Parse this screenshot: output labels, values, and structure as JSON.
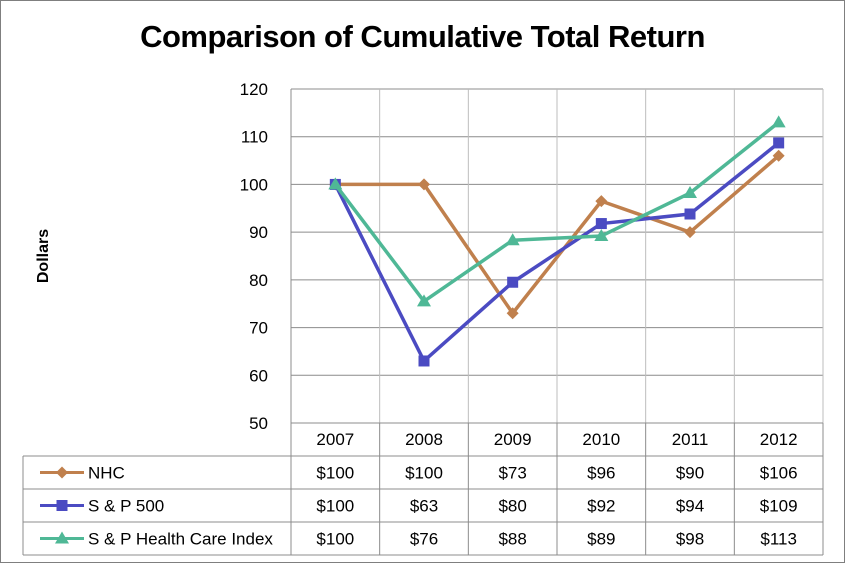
{
  "chart_data": {
    "type": "line",
    "title": "Comparison of Cumulative Total Return",
    "xlabel": "",
    "ylabel": "Dollars",
    "ylim": [
      50,
      120
    ],
    "yticks": [
      50,
      60,
      70,
      80,
      90,
      100,
      110,
      120
    ],
    "grid": true,
    "legend": "data-table",
    "categories": [
      "2007",
      "2008",
      "2009",
      "2010",
      "2011",
      "2012"
    ],
    "series": [
      {
        "name": "NHC",
        "values": [
          100,
          100,
          73,
          96.5,
          90,
          106
        ],
        "labels": [
          "$100",
          "$100",
          "$73",
          "$96",
          "$90",
          "$106"
        ],
        "color": "#c0804d",
        "marker": "diamond"
      },
      {
        "name": "S & P 500",
        "values": [
          100,
          63,
          79.5,
          91.8,
          93.8,
          108.7
        ],
        "labels": [
          "$100",
          "$63",
          "$80",
          "$92",
          "$94",
          "$109"
        ],
        "color": "#4b4bc2",
        "marker": "square"
      },
      {
        "name": "S & P Health Care Index",
        "values": [
          100,
          75.5,
          88.3,
          89.2,
          98.2,
          113
        ],
        "labels": [
          "$100",
          "$76",
          "$88",
          "$89",
          "$98",
          "$113"
        ],
        "color": "#4fb896",
        "marker": "triangle"
      }
    ]
  }
}
